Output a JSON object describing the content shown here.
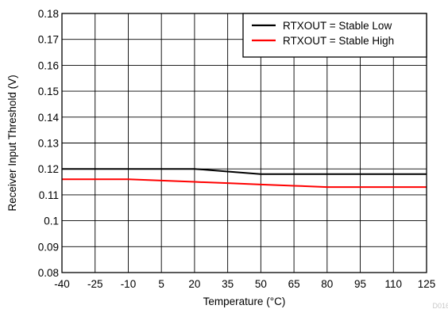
{
  "chart_data": {
    "type": "line",
    "title": "",
    "xlabel": "Temperature (°C)",
    "ylabel": "Receiver Input Threshold (V)",
    "xlim": [
      -40,
      125
    ],
    "ylim": [
      0.08,
      0.18
    ],
    "x_ticks": [
      "-40",
      "-25",
      "-10",
      "5",
      "20",
      "35",
      "50",
      "65",
      "80",
      "95",
      "110",
      "125"
    ],
    "y_ticks": [
      "0.08",
      "0.09",
      "0.1",
      "0.11",
      "0.12",
      "0.13",
      "0.14",
      "0.15",
      "0.16",
      "0.17",
      "0.18"
    ],
    "grid": true,
    "legend_position": "top-right",
    "series": [
      {
        "name": "RTXOUT = Stable Low",
        "color": "#000000",
        "x": [
          -40,
          -25,
          -10,
          5,
          20,
          35,
          50,
          65,
          80,
          95,
          110,
          125
        ],
        "y": [
          0.12,
          0.12,
          0.12,
          0.12,
          0.12,
          0.119,
          0.118,
          0.118,
          0.118,
          0.118,
          0.118,
          0.118
        ]
      },
      {
        "name": "RTXOUT = Stable High",
        "color": "#ff0000",
        "x": [
          -40,
          -25,
          -10,
          5,
          20,
          35,
          50,
          65,
          80,
          95,
          110,
          125
        ],
        "y": [
          0.116,
          0.116,
          0.116,
          0.1155,
          0.115,
          0.1145,
          0.114,
          0.1135,
          0.113,
          0.113,
          0.113,
          0.113
        ]
      }
    ],
    "watermark": "D016"
  }
}
